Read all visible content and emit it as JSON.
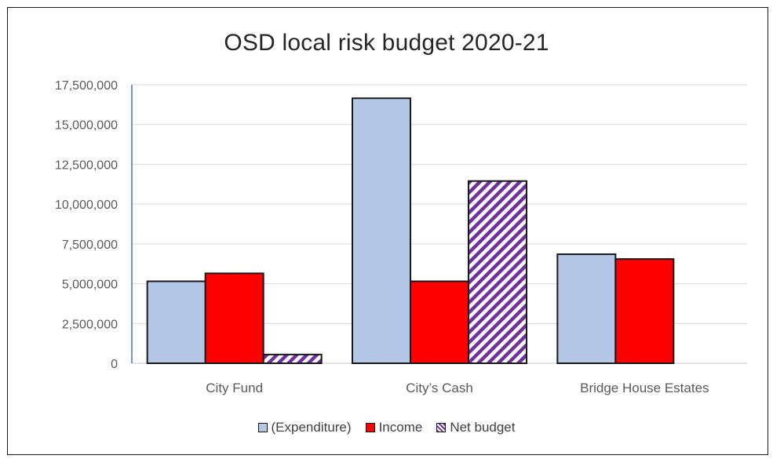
{
  "chart_data": {
    "type": "bar",
    "title": "OSD local risk budget 2020-21",
    "categories": [
      "City Fund",
      "City’s Cash",
      "Bridge House Estates"
    ],
    "series": [
      {
        "name": "(Expenditure)",
        "color": "#b4c7e7",
        "pattern": "solid",
        "values": [
          5150000,
          16650000,
          6850000
        ]
      },
      {
        "name": "Income",
        "color": "#ff0000",
        "pattern": "solid",
        "values": [
          5650000,
          5150000,
          6550000
        ]
      },
      {
        "name": "Net budget",
        "color": "#7030a0",
        "pattern": "diagonal-stripes",
        "values": [
          550000,
          11450000,
          null
        ]
      }
    ],
    "yticks": [
      "0",
      "2,500,000",
      "5,000,000",
      "7,500,000",
      "10,000,000",
      "12,500,000",
      "15,000,000",
      "17,500,000"
    ],
    "ylim": [
      0,
      17500000
    ],
    "grid": true,
    "legend_position": "bottom"
  }
}
